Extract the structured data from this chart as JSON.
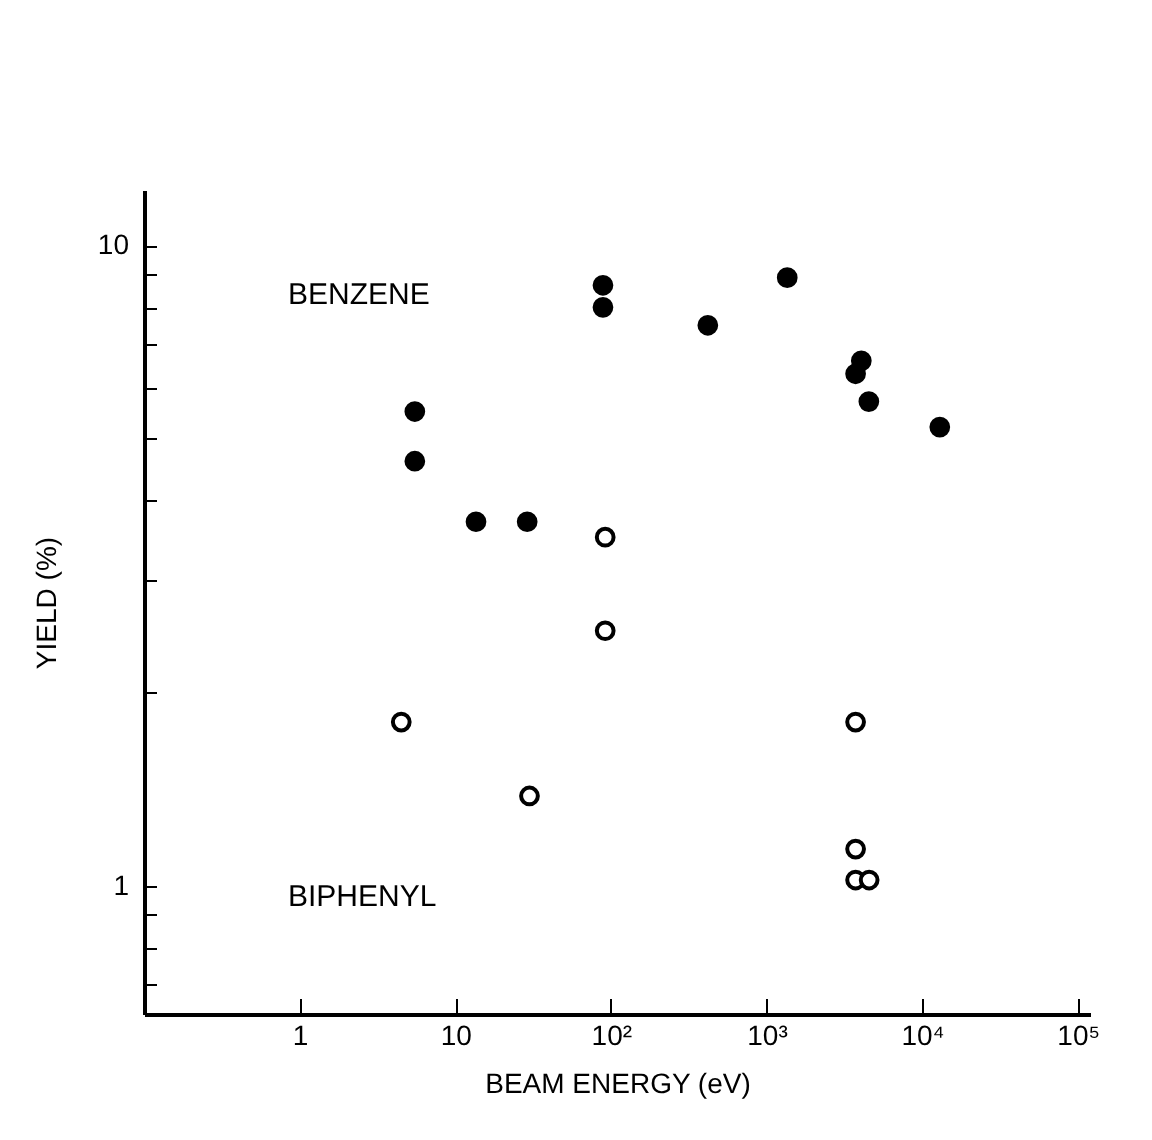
{
  "chart_data": {
    "type": "scatter",
    "xlabel": "BEAM ENERGY (eV)",
    "ylabel": "YIELD (%)",
    "log": "xy",
    "grid": false,
    "legend": false,
    "marker": "circle",
    "xlim": [
      0.1,
      120000
    ],
    "ylim": [
      0.63,
      12.2
    ],
    "xticks": [
      1,
      10,
      {
        "value": 100,
        "label": "10²"
      },
      {
        "value": 1000,
        "label": "10³"
      },
      {
        "value": 10000,
        "label": "10⁴"
      },
      {
        "value": 100000,
        "label": "10⁵"
      }
    ],
    "yticks": [
      {
        "value": 0.7,
        "label": null
      },
      {
        "value": 0.8,
        "label": null
      },
      {
        "value": 0.9,
        "label": null
      },
      1,
      {
        "value": 2,
        "label": null
      },
      {
        "value": 3,
        "label": null
      },
      {
        "value": 4,
        "label": null
      },
      {
        "value": 5,
        "label": null
      },
      {
        "value": 6,
        "label": null
      },
      {
        "value": 7,
        "label": null
      },
      {
        "value": 8,
        "label": null
      },
      {
        "value": 9,
        "label": null
      },
      10
    ],
    "annotations": [
      "BENZENE",
      "BIPHENYL"
    ],
    "series": [
      {
        "color": "#000000",
        "x": [
          5.5,
          5.5,
          13.6,
          29,
          89,
          89,
          420,
          1360,
          3740,
          4070,
          4550,
          13000
        ],
        "values": [
          5.5,
          4.6,
          3.7,
          3.7,
          8.66,
          8.0,
          7.5,
          8.9,
          6.3,
          6.6,
          5.7,
          5.2
        ]
      },
      {
        "color": "#000000",
        "x": [
          4.5,
          30,
          92,
          92,
          3740,
          3740,
          3740,
          4570
        ],
        "values": [
          1.8,
          1.38,
          3.5,
          2.5,
          1.8,
          1.14,
          1.02,
          1.02
        ]
      }
    ]
  }
}
